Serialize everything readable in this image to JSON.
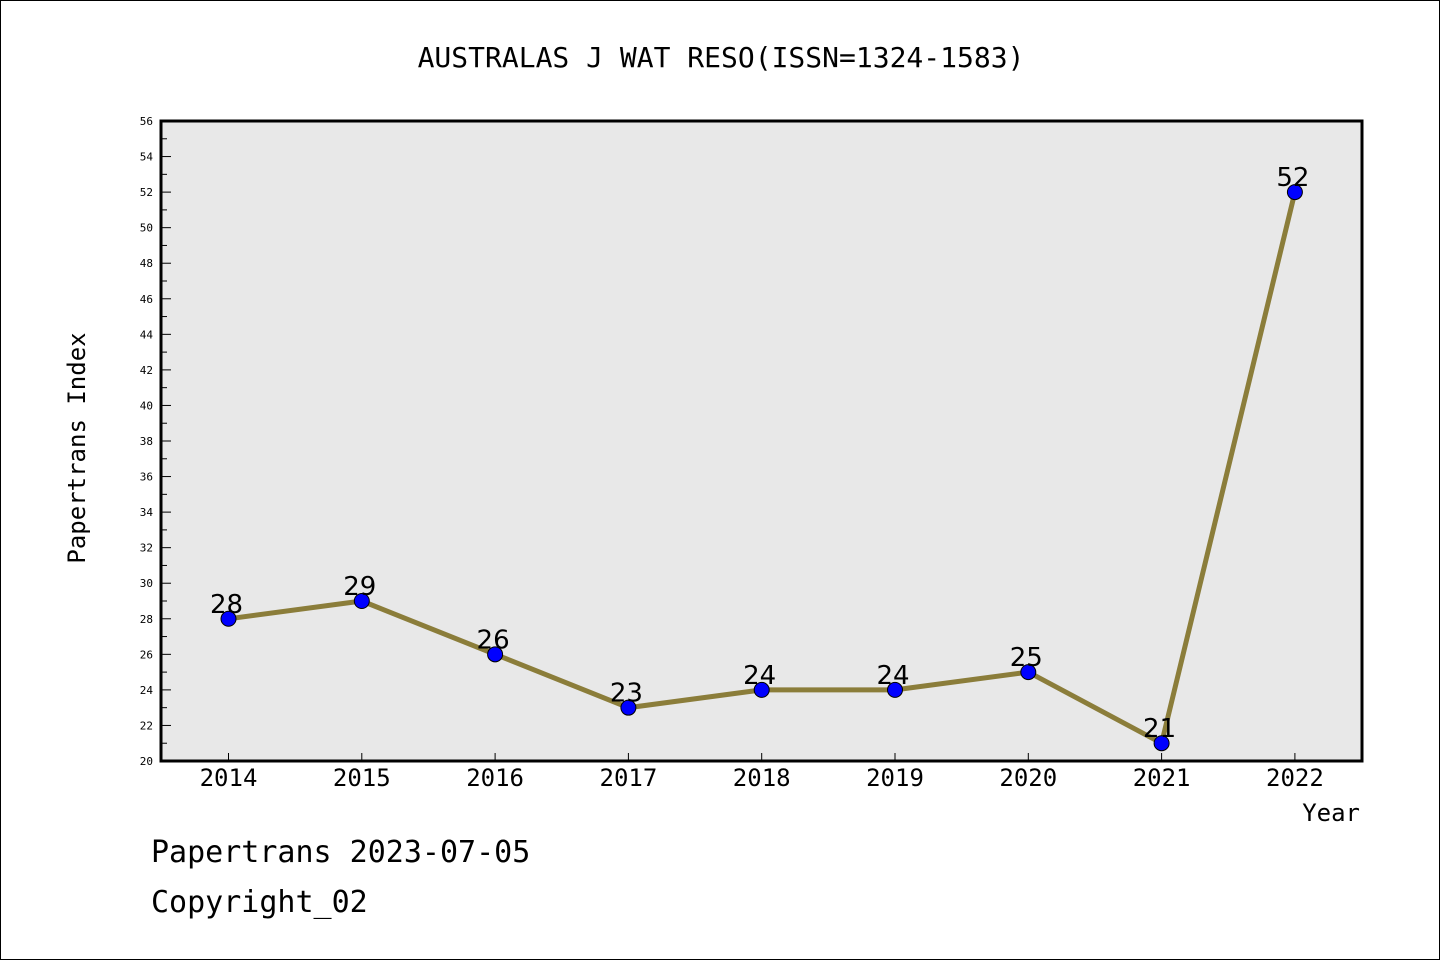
{
  "chart_data": {
    "type": "line",
    "title": "AUSTRALAS J WAT RESO(ISSN=1324-1583)",
    "xlabel": "Year",
    "ylabel": "Papertrans Index",
    "categories": [
      "2014",
      "2015",
      "2016",
      "2017",
      "2018",
      "2019",
      "2020",
      "2021",
      "2022"
    ],
    "series": [
      {
        "values": [
          28,
          29,
          26,
          23,
          24,
          24,
          25,
          21,
          52
        ]
      }
    ],
    "ylim": [
      20,
      56
    ],
    "y_ticks": [
      "20",
      "22",
      "24",
      "26",
      "28",
      "30",
      "32",
      "34",
      "36",
      "38",
      "40",
      "42",
      "44",
      "46",
      "48",
      "50",
      "52",
      "54",
      "56"
    ],
    "grid": false,
    "line_color": "#8b7d3a",
    "marker_color": "#0000ff",
    "plot_background": "#e8e8e8"
  },
  "footer": {
    "date_text": "Papertrans 2023-07-05",
    "copyright_text": "Copyright_02"
  }
}
